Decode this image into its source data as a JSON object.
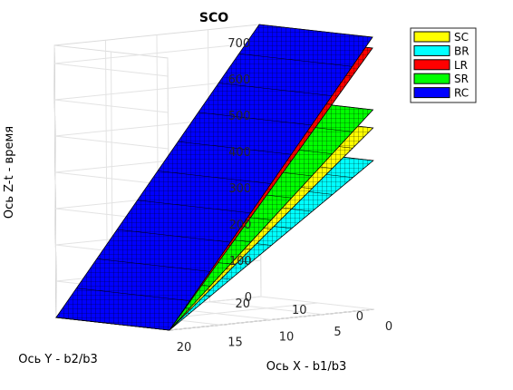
{
  "chart_data": {
    "type": "surface3d",
    "title": "SCO",
    "xlabel": "Ось X - b1/b3",
    "ylabel": "Ось Y - b2/b3",
    "zlabel": "Ось Z-t - время",
    "xlim": [
      0,
      20
    ],
    "ylim": [
      0,
      20
    ],
    "zlim": [
      0,
      750
    ],
    "x_ticks": [
      "0",
      "5",
      "10",
      "15",
      "20"
    ],
    "y_ticks": [
      "0",
      "10",
      "20"
    ],
    "z_ticks": [
      "0",
      "100",
      "200",
      "300",
      "400",
      "500",
      "600",
      "700"
    ],
    "grid": true,
    "legend_position": "top-right",
    "surfaces": "t = k * (1 - x/20), constant along y; value at x = 0",
    "series": [
      {
        "name": "SC",
        "color": "#ffff00",
        "value_at_x0": 500
      },
      {
        "name": "BR",
        "color": "#00ffff",
        "value_at_x0": 410
      },
      {
        "name": "LR",
        "color": "#ff0000",
        "value_at_x0": 720
      },
      {
        "name": "SR",
        "color": "#00ff00",
        "value_at_x0": 550
      },
      {
        "name": "RC",
        "color": "#0000ff",
        "value_at_x0": 750
      }
    ]
  }
}
